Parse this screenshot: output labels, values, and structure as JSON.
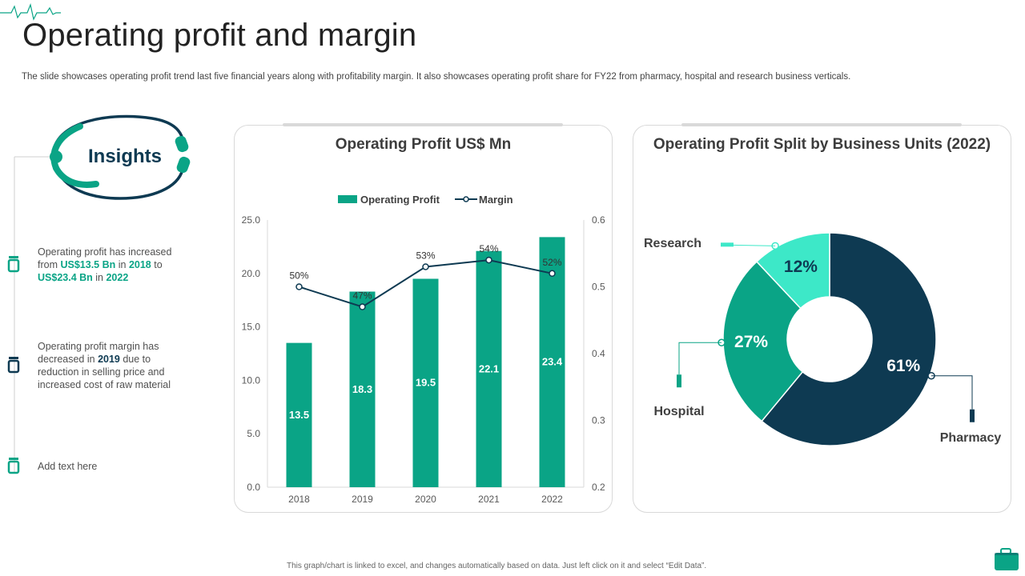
{
  "page": {
    "title": "Operating profit and margin",
    "subtitle": "The slide showcases operating profit trend last five financial years along with profitability margin. It also showcases operating profit share for FY22 from pharmacy, hospital and research business verticals.",
    "footer": "This graph/chart is linked to excel, and changes automatically based on data. Just left click on it and select “Edit Data”."
  },
  "insights": {
    "label": "Insights",
    "items": [
      {
        "p1": "Operating profit has increased from ",
        "h1": "US$13.5 Bn",
        "p2": " in ",
        "h2": "2018",
        "p3": " to ",
        "h3": "US$23.4 Bn",
        "p4": " in ",
        "h4": "2022"
      },
      {
        "p1": "Operating profit margin has decreased in ",
        "h1": "2019",
        "p2": " due to reduction in selling price and increased cost of raw material"
      },
      {
        "p1": "Add text here"
      }
    ]
  },
  "colors": {
    "teal": "#0aa486",
    "navy": "#0e3a52",
    "light_teal": "#3de8c8",
    "grid": "#d9d9d9"
  },
  "chart_data": [
    {
      "type": "bar",
      "title": "Operating Profit US$ Mn",
      "categories": [
        "2018",
        "2019",
        "2020",
        "2021",
        "2022"
      ],
      "series": [
        {
          "name": "Operating Profit",
          "type": "bar",
          "axis": "left",
          "values": [
            13.5,
            18.3,
            19.5,
            22.1,
            23.4
          ],
          "labels": [
            "13.5",
            "18.3",
            "19.5",
            "22.1",
            "23.4"
          ]
        },
        {
          "name": "Margin",
          "type": "line",
          "axis": "right",
          "values": [
            0.5,
            0.47,
            0.53,
            0.54,
            0.52
          ],
          "labels": [
            "50%",
            "47%",
            "53%",
            "54%",
            "52%"
          ]
        }
      ],
      "ylim": [
        0,
        25
      ],
      "yticks": [
        "0.0",
        "5.0",
        "10.0",
        "15.0",
        "20.0",
        "25.0"
      ],
      "y2lim": [
        0.2,
        0.6
      ],
      "y2ticks": [
        "0.2",
        "0.3",
        "0.4",
        "0.5",
        "0.6"
      ],
      "legend": "top"
    },
    {
      "type": "pie",
      "title": "Operating Profit Split by Business Units (2022)",
      "categories": [
        "Pharmacy",
        "Hospital",
        "Research"
      ],
      "values": [
        61,
        27,
        12
      ],
      "labels": [
        "61%",
        "27%",
        "12%"
      ]
    }
  ]
}
